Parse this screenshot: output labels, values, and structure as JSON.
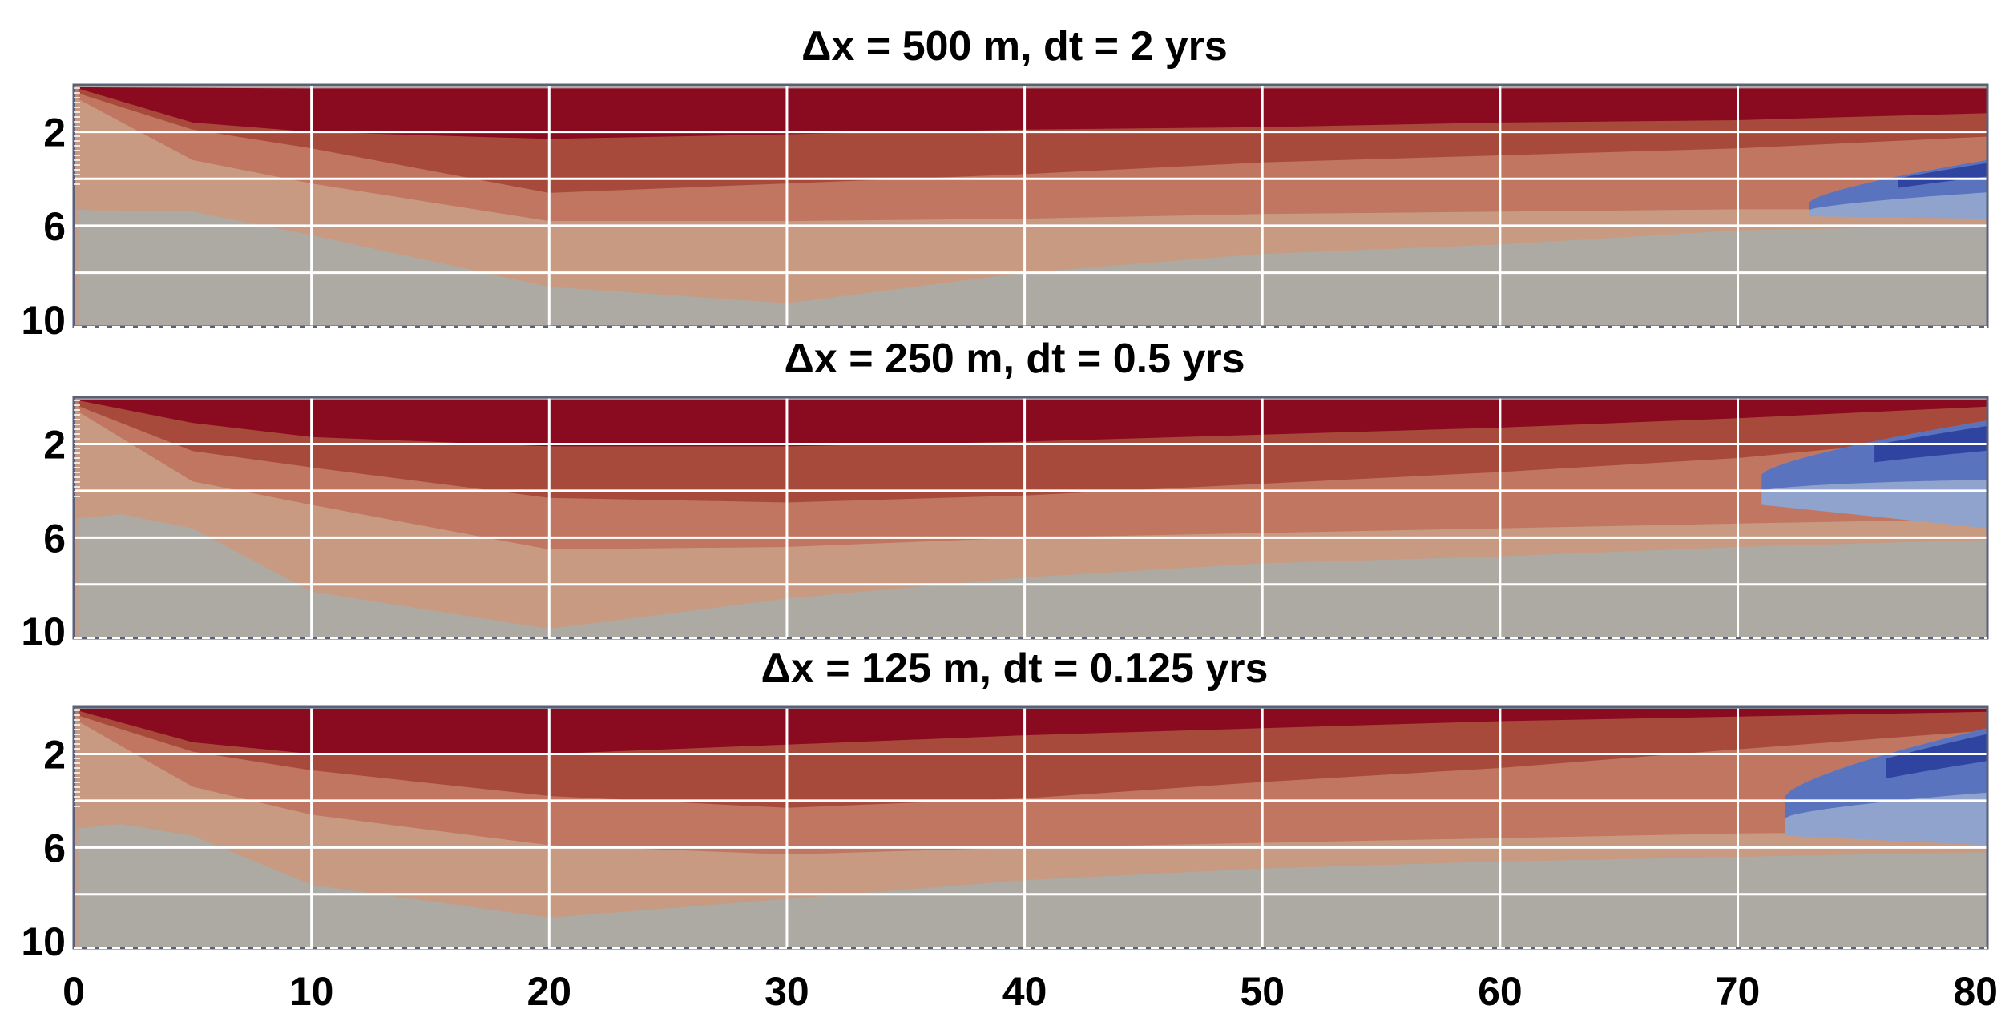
{
  "chart_data": {
    "type": "heatmap",
    "x_range": [
      0,
      80.5
    ],
    "y_range": [
      0,
      10.3
    ],
    "y_inverted": true,
    "x_ticks": [
      "0",
      "10",
      "20",
      "30",
      "40",
      "50",
      "60",
      "70",
      "80"
    ],
    "y_ticks": [
      "2",
      "6",
      "10"
    ],
    "grid": true,
    "legend": "none",
    "colors": {
      "dark_red": "#8a0a20",
      "red": "#a84a3b",
      "salmon": "#c07660",
      "peach": "#c89a82",
      "gray": "#adaaa3",
      "light_blue": "#8fa3cc",
      "blue": "#5a73be",
      "dark_blue": "#2e44a0",
      "grid": "#ffffff",
      "frame": "#5a6078"
    },
    "panels": [
      {
        "title": "Δx = 500 m, dt = 2 yrs",
        "boundaries": [
          {
            "x": [
              0,
              10,
              20,
              30,
              40,
              50,
              60,
              70,
              80.5
            ],
            "y": [
              0.1,
              0.15,
              0.15,
              0.15,
              0.15,
              0.15,
              0.15,
              0.15,
              0.15
            ]
          },
          {
            "x": [
              0,
              5,
              10,
              20,
              30,
              40,
              50,
              60,
              70,
              80.5
            ],
            "y": [
              0.1,
              1.6,
              2.0,
              2.3,
              2.1,
              1.9,
              1.8,
              1.6,
              1.5,
              1.2
            ]
          },
          {
            "x": [
              0,
              5,
              10,
              20,
              30,
              40,
              50,
              60,
              70,
              80.5
            ],
            "y": [
              0.3,
              1.9,
              2.7,
              4.6,
              4.2,
              3.8,
              3.3,
              3.0,
              2.7,
              2.2
            ]
          },
          {
            "x": [
              0,
              5,
              10,
              20,
              30,
              40,
              50,
              60,
              70,
              80.5
            ],
            "y": [
              0.5,
              3.2,
              4.2,
              5.8,
              5.8,
              5.7,
              5.5,
              5.4,
              5.3,
              5.3
            ]
          },
          {
            "x": [
              0,
              2,
              5,
              10,
              20,
              30,
              40,
              50,
              60,
              70,
              80.5
            ],
            "y": [
              5.3,
              5.4,
              5.4,
              6.4,
              8.6,
              9.3,
              8.0,
              7.2,
              6.8,
              6.2,
              6.0
            ]
          }
        ],
        "blue_zone": {
          "x": [
            73,
            80.5
          ],
          "y_top": [
            5.0,
            3.2
          ],
          "y_bottom": [
            5.6,
            5.7
          ]
        }
      },
      {
        "title": "Δx = 250 m, dt = 0.5 yrs",
        "boundaries": [
          {
            "x": [
              0,
              10,
              20,
              30,
              40,
              50,
              60,
              70,
              80.5
            ],
            "y": [
              0.1,
              0.1,
              0.1,
              0.1,
              0.1,
              0.1,
              0.1,
              0.1,
              0.1
            ]
          },
          {
            "x": [
              0,
              5,
              10,
              20,
              30,
              40,
              50,
              60,
              70,
              80.5
            ],
            "y": [
              0.1,
              1.1,
              1.7,
              2.1,
              2.1,
              1.9,
              1.6,
              1.3,
              0.9,
              0.4
            ]
          },
          {
            "x": [
              0,
              5,
              10,
              20,
              30,
              40,
              50,
              60,
              70,
              80.5
            ],
            "y": [
              0.3,
              2.3,
              3.0,
              4.3,
              4.5,
              4.2,
              3.7,
              3.2,
              2.6,
              1.6
            ]
          },
          {
            "x": [
              0,
              5,
              10,
              20,
              30,
              40,
              50,
              60,
              70,
              80.5
            ],
            "y": [
              0.5,
              3.6,
              4.6,
              6.5,
              6.4,
              6.0,
              5.8,
              5.6,
              5.4,
              5.2
            ]
          },
          {
            "x": [
              0,
              2,
              5,
              10,
              20,
              30,
              40,
              50,
              60,
              70,
              80.5
            ],
            "y": [
              5.2,
              5.0,
              5.6,
              8.3,
              9.9,
              8.6,
              7.7,
              7.1,
              6.8,
              6.4,
              6.1
            ]
          }
        ],
        "blue_zone": {
          "x": [
            71,
            80.5
          ],
          "y_top": [
            3.3,
            1.0
          ],
          "y_bottom": [
            4.6,
            5.6
          ]
        }
      },
      {
        "title": "Δx = 125 m, dt = 0.125 yrs",
        "boundaries": [
          {
            "x": [
              0,
              10,
              20,
              30,
              40,
              50,
              60,
              70,
              80.5
            ],
            "y": [
              0.1,
              0.1,
              0.1,
              0.1,
              0.1,
              0.1,
              0.1,
              0.1,
              0.1
            ]
          },
          {
            "x": [
              0,
              5,
              10,
              20,
              30,
              40,
              50,
              60,
              70,
              80.5
            ],
            "y": [
              0.1,
              1.5,
              2.0,
              2.0,
              1.6,
              1.2,
              0.9,
              0.6,
              0.4,
              0.2
            ]
          },
          {
            "x": [
              0,
              5,
              10,
              20,
              30,
              40,
              50,
              60,
              70,
              80.5
            ],
            "y": [
              0.3,
              1.9,
              2.7,
              3.8,
              4.3,
              3.9,
              3.2,
              2.6,
              1.8,
              1.0
            ]
          },
          {
            "x": [
              0,
              5,
              10,
              20,
              30,
              40,
              50,
              60,
              70,
              80.5
            ],
            "y": [
              0.5,
              3.4,
              4.6,
              5.9,
              6.3,
              6.0,
              5.8,
              5.6,
              5.4,
              5.3
            ]
          },
          {
            "x": [
              0,
              2,
              5,
              10,
              20,
              30,
              40,
              50,
              60,
              70,
              80.5
            ],
            "y": [
              5.2,
              5.0,
              5.5,
              7.6,
              9.0,
              8.2,
              7.4,
              6.9,
              6.6,
              6.4,
              6.2
            ]
          }
        ],
        "blue_zone": {
          "x": [
            72,
            80.5
          ],
          "y_top": [
            3.8,
            0.9
          ],
          "y_bottom": [
            5.5,
            5.9
          ]
        }
      }
    ]
  }
}
